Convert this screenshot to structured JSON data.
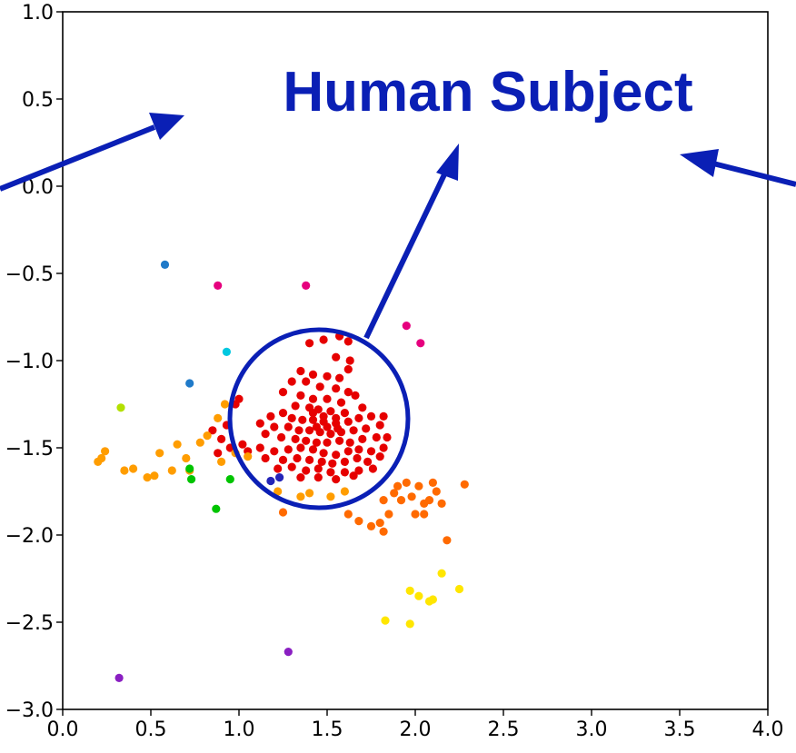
{
  "annotation": {
    "label": "Human Subject",
    "color": "#0a1fb5"
  },
  "chart_data": {
    "type": "scatter",
    "title": "",
    "xlabel": "",
    "ylabel": "",
    "xlim": [
      0.0,
      4.0
    ],
    "ylim": [
      -3.0,
      1.0
    ],
    "xticks": [
      "0.0",
      "0.5",
      "1.0",
      "1.5",
      "2.0",
      "2.5",
      "3.0",
      "3.5",
      "4.0"
    ],
    "yticks": [
      "1.0",
      "0.5",
      "0.0",
      "−0.5",
      "−1.0",
      "−1.5",
      "−2.0",
      "−2.5",
      "−3.0"
    ],
    "xtick_values": [
      0.0,
      0.5,
      1.0,
      1.5,
      2.0,
      2.5,
      3.0,
      3.5,
      4.0
    ],
    "ytick_values": [
      1.0,
      0.5,
      0.0,
      -0.5,
      -1.0,
      -1.5,
      -2.0,
      -2.5,
      -3.0
    ],
    "grid": false,
    "series": [
      {
        "color": "#e60000",
        "points": [
          [
            1.4,
            -0.9
          ],
          [
            1.48,
            -0.88
          ],
          [
            1.57,
            -0.86
          ],
          [
            1.62,
            -0.89
          ],
          [
            1.55,
            -0.98
          ],
          [
            1.63,
            -1.0
          ],
          [
            1.62,
            -1.05
          ],
          [
            1.35,
            -1.06
          ],
          [
            1.42,
            -1.08
          ],
          [
            1.5,
            -1.09
          ],
          [
            1.57,
            -1.1
          ],
          [
            1.3,
            -1.12
          ],
          [
            1.38,
            -1.12
          ],
          [
            1.46,
            -1.15
          ],
          [
            1.55,
            -1.16
          ],
          [
            1.62,
            -1.18
          ],
          [
            1.66,
            -1.2
          ],
          [
            1.25,
            -1.18
          ],
          [
            1.35,
            -1.2
          ],
          [
            1.42,
            -1.22
          ],
          [
            1.5,
            -1.22
          ],
          [
            1.58,
            -1.24
          ],
          [
            1.32,
            -1.26
          ],
          [
            1.4,
            -1.27
          ],
          [
            1.45,
            -1.28
          ],
          [
            1.52,
            -1.29
          ],
          [
            1.6,
            -1.3
          ],
          [
            1.7,
            -1.27
          ],
          [
            1.18,
            -1.32
          ],
          [
            1.25,
            -1.3
          ],
          [
            1.3,
            -1.33
          ],
          [
            1.36,
            -1.34
          ],
          [
            1.42,
            -1.34
          ],
          [
            1.48,
            -1.35
          ],
          [
            1.55,
            -1.36
          ],
          [
            1.62,
            -1.35
          ],
          [
            1.68,
            -1.33
          ],
          [
            1.75,
            -1.32
          ],
          [
            1.82,
            -1.32
          ],
          [
            1.12,
            -1.36
          ],
          [
            1.2,
            -1.38
          ],
          [
            1.28,
            -1.38
          ],
          [
            1.34,
            -1.4
          ],
          [
            1.4,
            -1.4
          ],
          [
            1.46,
            -1.41
          ],
          [
            1.52,
            -1.42
          ],
          [
            1.58,
            -1.41
          ],
          [
            1.65,
            -1.4
          ],
          [
            1.72,
            -1.39
          ],
          [
            1.8,
            -1.37
          ],
          [
            1.15,
            -1.42
          ],
          [
            1.24,
            -1.44
          ],
          [
            1.32,
            -1.45
          ],
          [
            1.38,
            -1.46
          ],
          [
            1.44,
            -1.47
          ],
          [
            1.5,
            -1.47
          ],
          [
            1.57,
            -1.46
          ],
          [
            1.63,
            -1.47
          ],
          [
            1.7,
            -1.45
          ],
          [
            1.78,
            -1.44
          ],
          [
            1.84,
            -1.44
          ],
          [
            1.12,
            -1.5
          ],
          [
            1.2,
            -1.52
          ],
          [
            1.28,
            -1.51
          ],
          [
            1.35,
            -1.5
          ],
          [
            1.42,
            -1.51
          ],
          [
            1.48,
            -1.53
          ],
          [
            1.55,
            -1.54
          ],
          [
            1.62,
            -1.52
          ],
          [
            1.68,
            -1.51
          ],
          [
            1.75,
            -1.52
          ],
          [
            1.82,
            -1.5
          ],
          [
            1.15,
            -1.56
          ],
          [
            1.25,
            -1.57
          ],
          [
            1.33,
            -1.56
          ],
          [
            1.4,
            -1.57
          ],
          [
            1.47,
            -1.58
          ],
          [
            1.53,
            -1.59
          ],
          [
            1.6,
            -1.58
          ],
          [
            1.67,
            -1.56
          ],
          [
            1.73,
            -1.58
          ],
          [
            1.8,
            -1.55
          ],
          [
            1.22,
            -1.62
          ],
          [
            1.3,
            -1.61
          ],
          [
            1.38,
            -1.63
          ],
          [
            1.45,
            -1.62
          ],
          [
            1.52,
            -1.64
          ],
          [
            1.6,
            -1.64
          ],
          [
            1.68,
            -1.63
          ],
          [
            1.76,
            -1.62
          ],
          [
            1.35,
            -1.67
          ],
          [
            1.45,
            -1.67
          ],
          [
            1.55,
            -1.68
          ],
          [
            1.65,
            -1.66
          ],
          [
            0.93,
            -1.37
          ],
          [
            0.98,
            -1.25
          ],
          [
            1.0,
            -1.22
          ],
          [
            0.85,
            -1.4
          ],
          [
            0.9,
            -1.45
          ],
          [
            0.95,
            -1.5
          ],
          [
            1.02,
            -1.48
          ],
          [
            1.05,
            -1.52
          ],
          [
            0.88,
            -1.53
          ],
          [
            1.42,
            -1.3
          ],
          [
            1.48,
            -1.32
          ],
          [
            1.55,
            -1.33
          ],
          [
            1.44,
            -1.38
          ],
          [
            1.5,
            -1.38
          ],
          [
            1.56,
            -1.39
          ]
        ]
      },
      {
        "color": "#ff9d00",
        "points": [
          [
            0.2,
            -1.58
          ],
          [
            0.22,
            -1.56
          ],
          [
            0.24,
            -1.52
          ],
          [
            0.35,
            -1.63
          ],
          [
            0.4,
            -1.62
          ],
          [
            0.48,
            -1.67
          ],
          [
            0.52,
            -1.66
          ],
          [
            0.55,
            -1.53
          ],
          [
            0.62,
            -1.63
          ],
          [
            0.65,
            -1.48
          ],
          [
            0.7,
            -1.56
          ],
          [
            0.72,
            -1.63
          ],
          [
            0.78,
            -1.47
          ],
          [
            0.82,
            -1.43
          ],
          [
            0.88,
            -1.33
          ],
          [
            0.9,
            -1.58
          ],
          [
            0.92,
            -1.25
          ],
          [
            0.98,
            -1.53
          ],
          [
            1.05,
            -1.55
          ],
          [
            1.22,
            -1.75
          ],
          [
            1.35,
            -1.78
          ],
          [
            1.4,
            -1.76
          ],
          [
            1.52,
            -1.78
          ],
          [
            1.6,
            -1.75
          ]
        ]
      },
      {
        "color": "#ff6a00",
        "points": [
          [
            1.25,
            -1.87
          ],
          [
            1.62,
            -1.88
          ],
          [
            1.68,
            -1.92
          ],
          [
            1.75,
            -1.95
          ],
          [
            1.8,
            -1.93
          ],
          [
            1.82,
            -1.98
          ],
          [
            1.85,
            -1.88
          ],
          [
            1.82,
            -1.8
          ],
          [
            1.88,
            -1.76
          ],
          [
            1.92,
            -1.8
          ],
          [
            1.95,
            -1.7
          ],
          [
            1.98,
            -1.78
          ],
          [
            2.0,
            -1.88
          ],
          [
            2.02,
            -1.72
          ],
          [
            2.05,
            -1.82
          ],
          [
            2.08,
            -1.8
          ],
          [
            2.1,
            -1.7
          ],
          [
            2.12,
            -1.75
          ],
          [
            2.15,
            -1.82
          ],
          [
            2.18,
            -2.03
          ],
          [
            2.28,
            -1.71
          ],
          [
            2.05,
            -1.88
          ],
          [
            1.9,
            -1.72
          ]
        ]
      },
      {
        "color": "#ffe600",
        "points": [
          [
            1.83,
            -2.49
          ],
          [
            1.97,
            -2.51
          ],
          [
            1.97,
            -2.32
          ],
          [
            2.02,
            -2.35
          ],
          [
            2.08,
            -2.38
          ],
          [
            2.1,
            -2.37
          ],
          [
            2.15,
            -2.22
          ],
          [
            2.25,
            -2.31
          ]
        ]
      },
      {
        "color": "#00c400",
        "points": [
          [
            0.72,
            -1.62
          ],
          [
            0.73,
            -1.68
          ],
          [
            0.87,
            -1.85
          ],
          [
            0.95,
            -1.68
          ]
        ]
      },
      {
        "color": "#1f7ac9",
        "points": [
          [
            0.58,
            -0.45
          ],
          [
            0.72,
            -1.13
          ]
        ]
      },
      {
        "color": "#00c8e0",
        "points": [
          [
            0.93,
            -0.95
          ]
        ]
      },
      {
        "color": "#e6007e",
        "points": [
          [
            0.88,
            -0.57
          ],
          [
            1.38,
            -0.57
          ],
          [
            1.95,
            -0.8
          ],
          [
            2.03,
            -0.9
          ]
        ]
      },
      {
        "color": "#b3e000",
        "points": [
          [
            0.33,
            -1.27
          ]
        ]
      },
      {
        "color": "#2424b8",
        "points": [
          [
            1.18,
            -1.69
          ],
          [
            1.23,
            -1.67
          ]
        ]
      },
      {
        "color": "#8a1fc2",
        "points": [
          [
            0.32,
            -2.82
          ],
          [
            1.28,
            -2.67
          ]
        ]
      }
    ]
  }
}
